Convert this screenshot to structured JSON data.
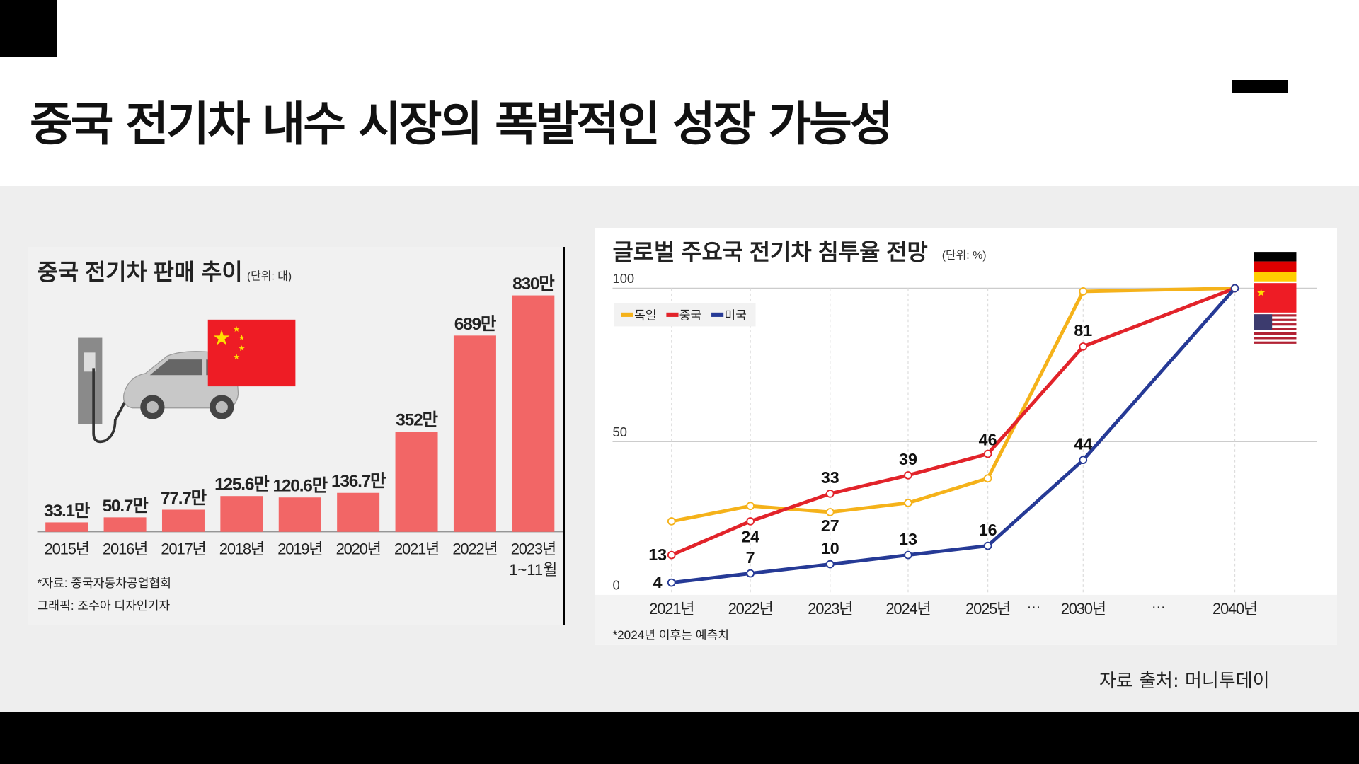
{
  "slide": {
    "title": "중국 전기차 내수 시장의 폭발적인 성장 가능성",
    "source": "자료 출처: 머니투데이"
  },
  "chart_data": [
    {
      "type": "bar",
      "title": "중국 전기차 판매 추이",
      "unit": "(단위: 대)",
      "categories": [
        "2015년",
        "2016년",
        "2017년",
        "2018년",
        "2019년",
        "2020년",
        "2021년",
        "2022년",
        "2023년"
      ],
      "category_sublabels": [
        "",
        "",
        "",
        "",
        "",
        "",
        "",
        "",
        "1~11월"
      ],
      "values": [
        33.1,
        50.7,
        77.7,
        125.6,
        120.6,
        136.7,
        352,
        689,
        830
      ],
      "value_labels": [
        "33.1만",
        "50.7만",
        "77.7만",
        "125.6만",
        "120.6만",
        "136.7만",
        "352만",
        "689만",
        "830만"
      ],
      "value_unit": "만",
      "ylim": [
        0,
        830
      ],
      "bar_color": "#f26666",
      "notes": [
        "*자료: 중국자동차공업협회",
        "그래픽: 조수아 디자인기자"
      ],
      "illustration": [
        "ev-charger-car-icon",
        "china-flag-icon"
      ]
    },
    {
      "type": "line",
      "title": "글로벌 주요국 전기차 침투율 전망",
      "unit": "(단위: %)",
      "categories": [
        "2021년",
        "2022년",
        "2023년",
        "2024년",
        "2025년",
        "2030년",
        "2040년"
      ],
      "gap_marker": "···",
      "yticks": [
        "0",
        "50",
        "100"
      ],
      "ylim": [
        0,
        100
      ],
      "grid": true,
      "legend_placement": "top-left",
      "series": [
        {
          "name": "독일",
          "color": "#f5b21a",
          "values": [
            24,
            29,
            27,
            30,
            38,
            99,
            100
          ],
          "labels": [
            null,
            null,
            "27",
            null,
            null,
            null,
            null
          ]
        },
        {
          "name": "중국",
          "color": "#e2232a",
          "values": [
            13,
            24,
            33,
            39,
            46,
            81,
            100
          ],
          "labels": [
            "13",
            "24",
            "33",
            "39",
            "46",
            "81",
            null
          ]
        },
        {
          "name": "미국",
          "color": "#263a96",
          "values": [
            4,
            7,
            10,
            13,
            16,
            44,
            100
          ],
          "labels": [
            "4",
            "7",
            "10",
            "13",
            "16",
            "44",
            null
          ]
        }
      ],
      "flags": [
        "germany-flag-icon",
        "china-flag-icon",
        "usa-flag-icon"
      ],
      "note": "*2024년 이후는 예측치"
    }
  ]
}
